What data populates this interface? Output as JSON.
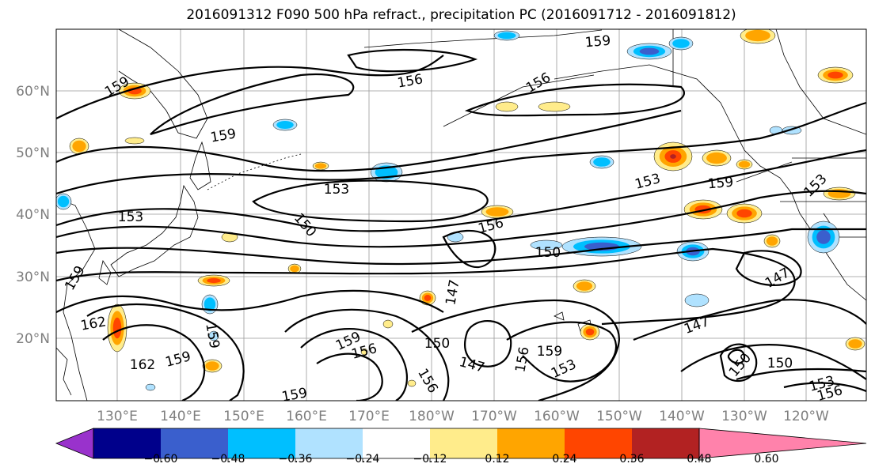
{
  "title": "2016091312 F090 500 hPa refract., precipitation PC (2016091712 - 2016091812)",
  "latitude_labels": [
    "60°N",
    "50°N",
    "40°N",
    "30°N",
    "20°N"
  ],
  "longitude_labels": [
    "130°E",
    "140°E",
    "150°E",
    "160°E",
    "170°E",
    "180°W",
    "170°W",
    "160°W",
    "150°W",
    "140°W",
    "130°W",
    "120°W"
  ],
  "colorbar": {
    "tick_labels": [
      "−0.60",
      "−0.48",
      "−0.36",
      "−0.24",
      "−0.12",
      "0.12",
      "0.24",
      "0.36",
      "0.48",
      "0.60"
    ],
    "colors": [
      "#9932cc",
      "#00008b",
      "#3a5fcd",
      "#00bfff",
      "#b0e2ff",
      "#ffffff",
      "#ffec8b",
      "#ffa500",
      "#ff4500",
      "#b22222",
      "#ff82ab"
    ]
  },
  "contour_labels": [
    "159",
    "156",
    "159",
    "156",
    "159",
    "153",
    "150",
    "153",
    "156",
    "150",
    "159",
    "153",
    "153",
    "159",
    "162",
    "162",
    "159",
    "159",
    "147",
    "150",
    "156",
    "159",
    "156",
    "147",
    "156",
    "159",
    "153",
    "147",
    "147",
    "150",
    "150",
    "153",
    "156",
    "159"
  ],
  "precip_blobs": {
    "pos_colors": [
      "#ffec8b",
      "#ffa500",
      "#ff4500",
      "#b22222"
    ],
    "neg_colors": [
      "#b0e2ff",
      "#00bfff",
      "#3a5fcd"
    ]
  }
}
